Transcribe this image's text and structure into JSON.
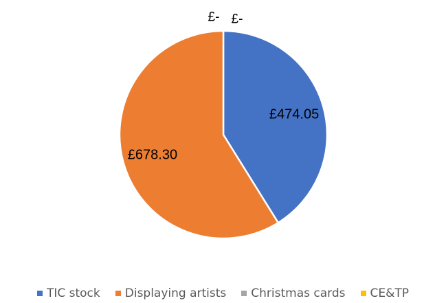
{
  "chart_data": {
    "type": "pie",
    "title": "",
    "slices": [
      {
        "label": "TIC stock",
        "value": 474.05,
        "data_label": "£474.05",
        "color": "#4472C4"
      },
      {
        "label": "Displaying artists",
        "value": 678.3,
        "data_label": "£678.30",
        "color": "#ED7D31"
      },
      {
        "label": "Christmas cards",
        "value": 0,
        "data_label": "£-",
        "color": "#A5A5A5"
      },
      {
        "label": "CE&TP",
        "value": 0,
        "data_label": "£-",
        "color": "#FFC000"
      }
    ],
    "legend_position": "bottom",
    "start_angle_deg": 0,
    "direction": "clockwise"
  }
}
